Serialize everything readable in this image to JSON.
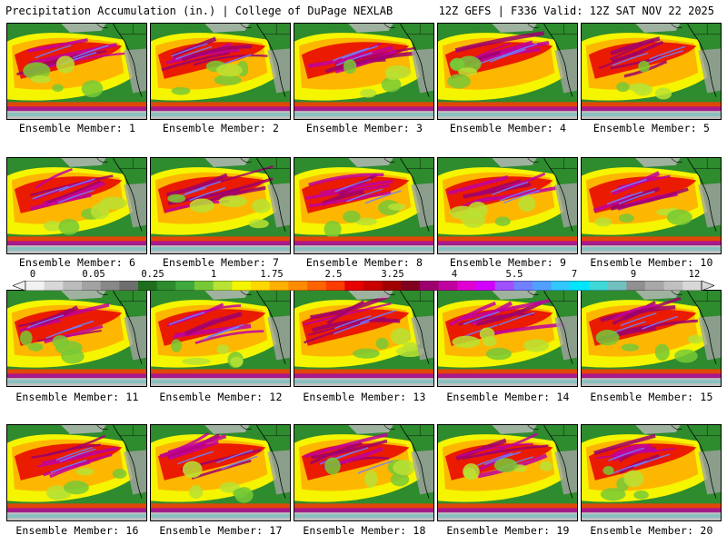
{
  "header": {
    "left": "Precipitation Accumulation (in.) | College of DuPage NEXLAB",
    "right": "12Z GEFS | F336 Valid: 12Z SAT NOV 22 2025"
  },
  "members": [
    {
      "label": "Ensemble Member: 1"
    },
    {
      "label": "Ensemble Member: 2"
    },
    {
      "label": "Ensemble Member: 3"
    },
    {
      "label": "Ensemble Member: 4"
    },
    {
      "label": "Ensemble Member: 5"
    },
    {
      "label": "Ensemble Member: 6"
    },
    {
      "label": "Ensemble Member: 7"
    },
    {
      "label": "Ensemble Member: 8"
    },
    {
      "label": "Ensemble Member: 9"
    },
    {
      "label": "Ensemble Member: 10"
    },
    {
      "label": "Ensemble Member: 11"
    },
    {
      "label": "Ensemble Member: 12"
    },
    {
      "label": "Ensemble Member: 13"
    },
    {
      "label": "Ensemble Member: 14"
    },
    {
      "label": "Ensemble Member: 15"
    },
    {
      "label": "Ensemble Member: 16"
    },
    {
      "label": "Ensemble Member: 17"
    },
    {
      "label": "Ensemble Member: 18"
    },
    {
      "label": "Ensemble Member: 19"
    },
    {
      "label": "Ensemble Member: 20"
    }
  ],
  "colorbar": {
    "tick_labels": [
      "0",
      "0.05",
      "0.25",
      "1",
      "1.75",
      "2.5",
      "3.25",
      "4",
      "5.5",
      "7",
      "9",
      "12"
    ],
    "colors": [
      "#f2f2f2",
      "#d8d8d8",
      "#bcbcbc",
      "#a2a2a2",
      "#888888",
      "#6e6e6e",
      "#1e6e1e",
      "#2e8b2e",
      "#3fa83f",
      "#77c936",
      "#b8e234",
      "#f5f500",
      "#ffd700",
      "#ffb000",
      "#ff8c00",
      "#ff6400",
      "#ff3c00",
      "#e60000",
      "#c80000",
      "#a00000",
      "#800020",
      "#9c006e",
      "#c000a0",
      "#e000d2",
      "#d200ff",
      "#a050ff",
      "#7080ff",
      "#50a0ff",
      "#30c8ff",
      "#00e6ff",
      "#40d8d8",
      "#70c0c0",
      "#909090",
      "#a8a8a8",
      "#c0c0c0",
      "#d8d8d8"
    ]
  }
}
